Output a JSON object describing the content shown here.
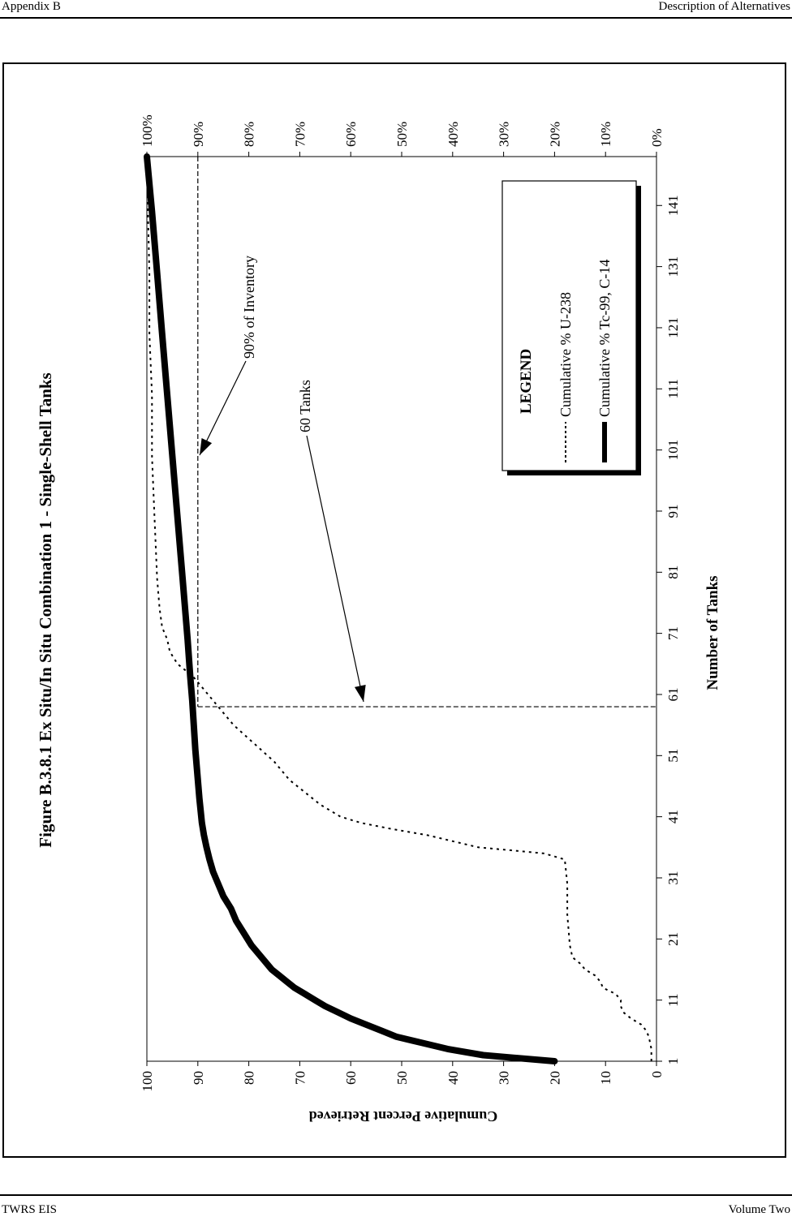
{
  "header": {
    "left": "Appendix B",
    "right": "Description of Alternatives"
  },
  "footer": {
    "left": "TWRS EIS",
    "right": "Volume Two"
  },
  "chart_data": {
    "type": "line",
    "title": "Figure B.3.8.1  Ex Situ/In Situ Combination 1 - Single-Shell Tanks",
    "xlabel": "Number of Tanks",
    "ylabel": "Cumulative Percent Retrieved",
    "xlim": [
      1,
      149
    ],
    "ylim": [
      0,
      100
    ],
    "x_ticks": [
      "1",
      "11",
      "21",
      "31",
      "41",
      "51",
      "61",
      "71",
      "81",
      "91",
      "101",
      "111",
      "121",
      "131",
      "141"
    ],
    "y_ticks_left": [
      "0",
      "10",
      "20",
      "30",
      "40",
      "50",
      "60",
      "70",
      "80",
      "90",
      "100"
    ],
    "y_ticks_right": [
      "0%",
      "10%",
      "20%",
      "30%",
      "40%",
      "50%",
      "60%",
      "70%",
      "80%",
      "90%",
      "100%"
    ],
    "legend": {
      "title": "LEGEND",
      "entries": [
        "Cumulative % U-238",
        "Cumulative % Tc-99, C-14"
      ],
      "placement": "lower-right"
    },
    "annotations": [
      {
        "text": "90% of Inventory",
        "x": 102,
        "y": 90
      },
      {
        "text": "60 Tanks",
        "x": 60,
        "y": 57
      }
    ],
    "reference_lines": {
      "inventory_level": 90,
      "tanks": 60
    },
    "series": [
      {
        "name": "Cumulative % U-238",
        "style": "dotted",
        "x": [
          1,
          3,
          5,
          6,
          7,
          8,
          9,
          10,
          11,
          12,
          13,
          14,
          15,
          16,
          17,
          18,
          20,
          25,
          30,
          34,
          35,
          36,
          37,
          38,
          39,
          40,
          41,
          42,
          43,
          45,
          47,
          50,
          53,
          56,
          59,
          62,
          64,
          66,
          68,
          70,
          72,
          75,
          80,
          90,
          100,
          110,
          120,
          130,
          140,
          149
        ],
        "y": [
          1,
          1,
          1.5,
          2,
          3,
          5,
          6.5,
          7,
          7,
          8,
          10.5,
          11,
          12,
          14,
          15,
          16.5,
          17,
          17.5,
          17.5,
          18,
          22,
          35,
          40,
          45,
          52,
          58,
          62,
          64,
          66,
          69,
          72,
          75,
          79,
          83,
          86,
          89,
          91,
          94,
          95.5,
          96,
          97,
          97.5,
          98,
          98.5,
          99,
          99,
          99.5,
          99.5,
          99.8,
          100
        ]
      },
      {
        "name": "Cumulative % Tc-99, C-14",
        "style": "solid-thick",
        "x": [
          1,
          2,
          3,
          4,
          5,
          6,
          7,
          8,
          9,
          10,
          11,
          12,
          13,
          14,
          15,
          16,
          18,
          20,
          22,
          24,
          26,
          28,
          30,
          32,
          34,
          36,
          38,
          40,
          44,
          48,
          52,
          56,
          60,
          64,
          70,
          80,
          90,
          100,
          110,
          120,
          130,
          140,
          149
        ],
        "y": [
          20,
          34,
          41,
          46,
          51,
          54,
          57,
          60,
          62.5,
          65,
          67,
          69,
          71,
          72.5,
          74,
          75.5,
          77.5,
          79.5,
          81,
          82.5,
          83.5,
          85,
          86,
          87,
          87.7,
          88.3,
          88.8,
          89.2,
          89.7,
          90.1,
          90.5,
          90.8,
          91.1,
          91.5,
          92,
          93,
          94,
          95,
          96,
          97,
          98,
          99,
          100
        ]
      }
    ]
  }
}
